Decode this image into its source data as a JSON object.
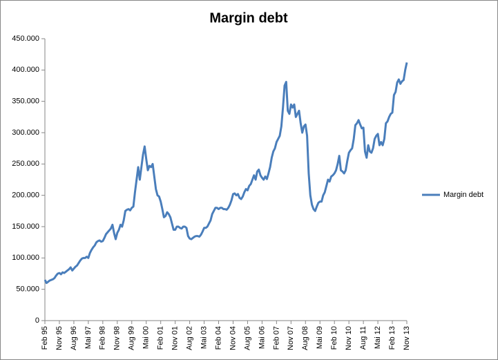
{
  "chart_data": {
    "type": "line",
    "title": "Margin debt",
    "categories": [
      "Feb 95",
      null,
      null,
      null,
      null,
      null,
      null,
      null,
      null,
      "Nov 95",
      null,
      null,
      null,
      null,
      null,
      null,
      null,
      null,
      "Aug 96",
      null,
      null,
      null,
      null,
      null,
      null,
      null,
      null,
      "Mai 97",
      null,
      null,
      null,
      null,
      null,
      null,
      null,
      null,
      "Feb 98",
      null,
      null,
      null,
      null,
      null,
      null,
      null,
      null,
      "Nov 98",
      null,
      null,
      null,
      null,
      null,
      null,
      null,
      null,
      "Aug 99",
      null,
      null,
      null,
      null,
      null,
      null,
      null,
      null,
      "Mai 00",
      null,
      null,
      null,
      null,
      null,
      null,
      null,
      null,
      "Feb 01",
      null,
      null,
      null,
      null,
      null,
      null,
      null,
      null,
      "Nov 01",
      null,
      null,
      null,
      null,
      null,
      null,
      null,
      null,
      "Aug 02",
      null,
      null,
      null,
      null,
      null,
      null,
      null,
      null,
      "Mai 03",
      null,
      null,
      null,
      null,
      null,
      null,
      null,
      null,
      "Feb 04",
      null,
      null,
      null,
      null,
      null,
      null,
      null,
      null,
      "Nov 04",
      null,
      null,
      null,
      null,
      null,
      null,
      null,
      null,
      "Aug 05",
      null,
      null,
      null,
      null,
      null,
      null,
      null,
      null,
      "Mai 06",
      null,
      null,
      null,
      null,
      null,
      null,
      null,
      null,
      "Feb 07",
      null,
      null,
      null,
      null,
      null,
      null,
      null,
      null,
      "Nov 07",
      null,
      null,
      null,
      null,
      null,
      null,
      null,
      null,
      "Aug 08",
      null,
      null,
      null,
      null,
      null,
      null,
      null,
      null,
      "Mai 09",
      null,
      null,
      null,
      null,
      null,
      null,
      null,
      null,
      "Feb 10",
      null,
      null,
      null,
      null,
      null,
      null,
      null,
      null,
      "Nov 10",
      null,
      null,
      null,
      null,
      null,
      null,
      null,
      null,
      "Aug 11",
      null,
      null,
      null,
      null,
      null,
      null,
      null,
      null,
      "Mai 12",
      null,
      null,
      null,
      null,
      null,
      null,
      null,
      null,
      "Feb 13",
      null,
      null,
      null,
      null,
      null,
      null,
      null,
      null,
      "Nov 13"
    ],
    "series": [
      {
        "name": "Margin debt",
        "color": "#4a7ebb",
        "values": [
          65000,
          60000,
          62000,
          64000,
          65000,
          66000,
          68000,
          72000,
          75000,
          76000,
          74000,
          77000,
          76000,
          78000,
          80000,
          82000,
          85000,
          80000,
          83000,
          86000,
          88000,
          92000,
          96000,
          99000,
          100000,
          100000,
          102000,
          100000,
          108000,
          113000,
          117000,
          120000,
          125000,
          127000,
          128000,
          126000,
          127000,
          132000,
          138000,
          141000,
          144000,
          147000,
          153000,
          140000,
          130000,
          140000,
          145000,
          153000,
          150000,
          160000,
          175000,
          177000,
          178000,
          176000,
          180000,
          182000,
          205000,
          225000,
          245000,
          225000,
          245000,
          265000,
          278000,
          258000,
          240000,
          247000,
          245000,
          250000,
          230000,
          210000,
          200000,
          198000,
          190000,
          178000,
          165000,
          167000,
          173000,
          170000,
          165000,
          155000,
          145000,
          145000,
          150000,
          150000,
          148000,
          147000,
          150000,
          150000,
          148000,
          135000,
          131000,
          130000,
          132000,
          134000,
          135000,
          135000,
          134000,
          137000,
          142000,
          148000,
          148000,
          150000,
          155000,
          160000,
          170000,
          175000,
          180000,
          180000,
          178000,
          180000,
          180000,
          178000,
          178000,
          177000,
          180000,
          185000,
          192000,
          202000,
          203000,
          200000,
          202000,
          196000,
          194000,
          198000,
          205000,
          210000,
          208000,
          215000,
          218000,
          225000,
          232000,
          225000,
          238000,
          241000,
          232000,
          228000,
          225000,
          230000,
          226000,
          235000,
          245000,
          260000,
          270000,
          275000,
          285000,
          290000,
          295000,
          310000,
          340000,
          375000,
          381000,
          335000,
          330000,
          345000,
          340000,
          345000,
          325000,
          330000,
          335000,
          315000,
          300000,
          310000,
          313000,
          295000,
          235000,
          200000,
          185000,
          178000,
          175000,
          182000,
          188000,
          190000,
          190000,
          200000,
          205000,
          215000,
          225000,
          222000,
          230000,
          232000,
          235000,
          240000,
          250000,
          263000,
          240000,
          238000,
          235000,
          240000,
          255000,
          268000,
          272000,
          275000,
          290000,
          312000,
          315000,
          320000,
          313000,
          307000,
          308000,
          270000,
          260000,
          280000,
          270000,
          268000,
          275000,
          290000,
          295000,
          298000,
          280000,
          285000,
          280000,
          290000,
          315000,
          318000,
          325000,
          330000,
          332000,
          360000,
          365000,
          380000,
          385000,
          378000,
          382000,
          384000,
          400000,
          412000
        ]
      }
    ],
    "ylim": [
      0,
      450000
    ],
    "yticks": [
      0,
      {
        "value": 50000,
        "label": "50.000"
      },
      {
        "value": 100000,
        "label": "100.000"
      },
      {
        "value": 150000,
        "label": "150.000"
      },
      {
        "value": 200000,
        "label": "200.000"
      },
      {
        "value": 250000,
        "label": "250.000"
      },
      {
        "value": 300000,
        "label": "300.000"
      },
      {
        "value": 350000,
        "label": "350.000"
      },
      {
        "value": 400000,
        "label": "400.000"
      },
      {
        "value": 450000,
        "label": "450.000"
      }
    ],
    "grid": false,
    "legend": "right"
  }
}
